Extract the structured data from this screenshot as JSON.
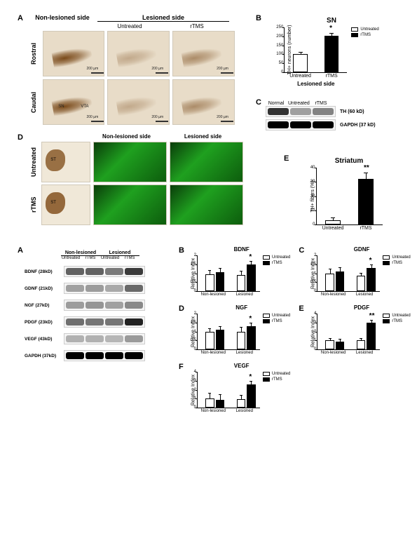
{
  "fig1": {
    "panelA": {
      "label": "A",
      "header_nonlesioned": "Non-lesioned side",
      "header_lesioned": "Lesioned side",
      "col_untreated": "Untreated",
      "col_rtms": "rTMS",
      "row_rostral": "Rostral",
      "row_caudal": "Caudal",
      "roi_sn": "SN",
      "roi_vta": "VTA",
      "scale_label": "200 µm",
      "micro_bg": "#e8dcc8",
      "stain_color": "#7a4a1a"
    },
    "panelB": {
      "label": "B",
      "title": "SN",
      "y_axis": "TH+ neurons (number)",
      "x_axis": "Lesioned side",
      "categories": [
        "Untreated",
        "rTMS"
      ],
      "values": [
        100,
        205
      ],
      "errors": [
        8,
        10
      ],
      "colors": [
        "#ffffff",
        "#000000"
      ],
      "ylim": [
        0,
        250
      ],
      "ytick_step": 50,
      "sig": "*",
      "sig_over_index": 1,
      "legend": [
        "Untreated",
        "rTMS"
      ]
    },
    "panelC": {
      "label": "C",
      "lanes_header": [
        "Normal",
        "Untreated",
        "rTMS"
      ],
      "group_label": "PD",
      "rows": [
        {
          "label": "TH (60 kD)",
          "intensities": [
            1.0,
            0.25,
            0.45
          ],
          "color": "#333"
        },
        {
          "label": "GAPDH (37 kD)",
          "intensities": [
            1.0,
            1.0,
            1.0
          ],
          "color": "#000"
        }
      ],
      "lane_width": 30
    },
    "panelD": {
      "label": "D",
      "row_untreated": "Untreated",
      "row_rtms": "rTMS",
      "header_nonlesioned": "Non-lesioned side",
      "header_lesioned": "Lesioned side",
      "roi_st": "ST",
      "green_bg": "#1a7a1a"
    },
    "panelE": {
      "label": "E",
      "title": "Striatum",
      "y_axis": "TH+ fibers (%)",
      "categories": [
        "Untreated",
        "rTMS"
      ],
      "values": [
        3,
        32
      ],
      "errors": [
        1.5,
        4
      ],
      "colors": [
        "#ffffff",
        "#000000"
      ],
      "ylim": [
        0,
        40
      ],
      "ytick_step": 10,
      "sig": "**",
      "sig_over_index": 1
    }
  },
  "fig2": {
    "panelA": {
      "label": "A",
      "group1": "Non-lesioned",
      "group2": "Lesioned",
      "lane_headers": [
        "Untreated",
        "rTMS",
        "Untreated",
        "rTMS"
      ],
      "rows": [
        {
          "label": "BDNF (28kD)",
          "intensities": [
            0.7,
            0.7,
            0.55,
            0.95
          ],
          "color": "#333"
        },
        {
          "label": "GDNF (21kD)",
          "intensities": [
            0.4,
            0.45,
            0.35,
            0.85
          ],
          "color": "#555"
        },
        {
          "label": "NGF (27kD)",
          "intensities": [
            0.45,
            0.5,
            0.4,
            0.6
          ],
          "color": "#555"
        },
        {
          "label": "PDGF (23kD)",
          "intensities": [
            0.55,
            0.5,
            0.5,
            1.0
          ],
          "color": "#222"
        },
        {
          "label": "VEGF (43kD)",
          "intensities": [
            0.35,
            0.35,
            0.3,
            0.55
          ],
          "color": "#666"
        },
        {
          "label": "GAPDH (37kD)",
          "intensities": [
            1.0,
            1.0,
            1.0,
            1.0
          ],
          "color": "#000"
        }
      ],
      "lane_width": 26
    },
    "charts_common": {
      "legend": [
        "Untreated",
        "rTMS"
      ],
      "groups": [
        "Non-lesioned",
        "Lesioned"
      ],
      "y_axis": "Relative Index",
      "colors": [
        "#ffffff",
        "#000000"
      ]
    },
    "panelB": {
      "label": "B",
      "title": "BDNF",
      "values": [
        [
          0.95,
          1.05
        ],
        [
          0.9,
          1.5
        ]
      ],
      "errors": [
        [
          0.2,
          0.2
        ],
        [
          0.2,
          0.15
        ]
      ],
      "ylim": [
        0,
        2.0
      ],
      "ytick_step": 0.5,
      "sig": "*",
      "sig_group_index": 1
    },
    "panelC": {
      "label": "C",
      "title": "GDNF",
      "values": [
        [
          1.0,
          1.1
        ],
        [
          0.85,
          1.3
        ]
      ],
      "errors": [
        [
          0.2,
          0.2
        ],
        [
          0.15,
          0.15
        ]
      ],
      "ylim": [
        0,
        2.0
      ],
      "ytick_step": 0.5,
      "sig": "*",
      "sig_group_index": 1
    },
    "panelD": {
      "label": "D",
      "title": "NGF",
      "values": [
        [
          1.0,
          1.1
        ],
        [
          1.0,
          1.3
        ]
      ],
      "errors": [
        [
          0.15,
          0.15
        ],
        [
          0.2,
          0.15
        ]
      ],
      "ylim": [
        0,
        2.0
      ],
      "ytick_step": 0.5,
      "sig": "*",
      "sig_group_index": 1
    },
    "panelE": {
      "label": "E",
      "title": "PDGF",
      "values": [
        [
          1.0,
          0.9
        ],
        [
          1.0,
          3.0
        ]
      ],
      "errors": [
        [
          0.2,
          0.2
        ],
        [
          0.2,
          0.2
        ]
      ],
      "ylim": [
        0,
        4.0
      ],
      "ytick_step": 1.0,
      "sig": "**",
      "sig_group_index": 1
    },
    "panelF": {
      "label": "F",
      "title": "VEGF",
      "values": [
        [
          1.0,
          0.9
        ],
        [
          0.95,
          2.6
        ]
      ],
      "errors": [
        [
          0.6,
          0.5
        ],
        [
          0.4,
          0.3
        ]
      ],
      "ylim": [
        0,
        4.0
      ],
      "ytick_step": 1.0,
      "sig": "*",
      "sig_group_index": 1
    }
  }
}
